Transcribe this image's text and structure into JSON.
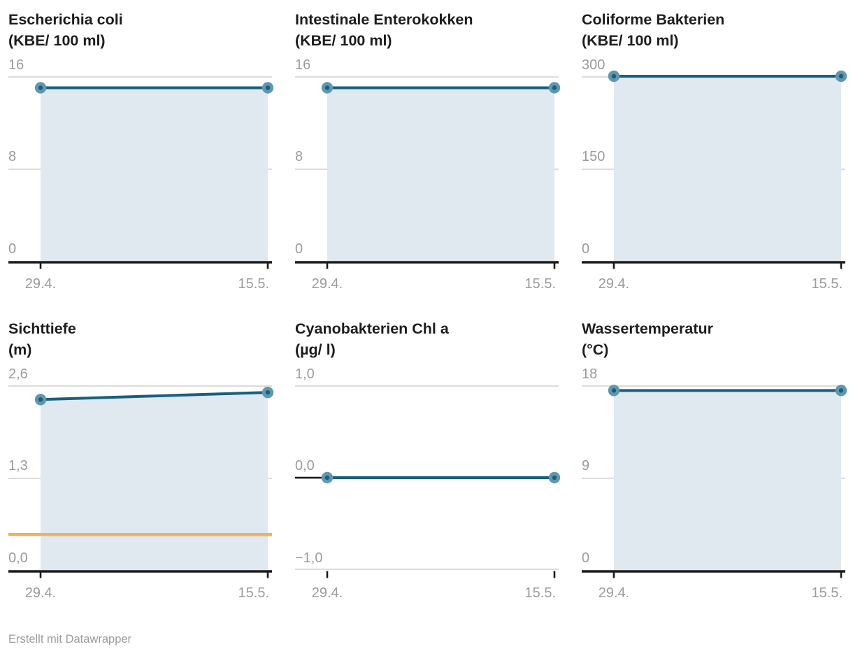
{
  "style": {
    "line_color": "#17607e",
    "dot_color": "#6097ae",
    "dot_core_color": "#17607e",
    "area_color": "#e0e8f0",
    "grid_color": "#dcdcdc",
    "axis_color": "#1a1a1a",
    "label_color": "#9b9b9b",
    "title_color": "#1d1d1d",
    "threshold_color": "#f0b05c"
  },
  "chart_data": [
    {
      "type": "area",
      "title": "Escherichia coli",
      "unit": "(KBE/ 100 ml)",
      "categories": [
        "29.4.",
        "15.5."
      ],
      "values": [
        15,
        15
      ],
      "ylim": [
        0,
        16
      ],
      "y_tick_values": [
        16,
        8,
        0
      ],
      "y_tick_labels": [
        "16",
        "8",
        "0"
      ],
      "baseline": "black",
      "zero_line": false,
      "threshold": null
    },
    {
      "type": "area",
      "title": "Intestinale Enterokokken",
      "unit": "(KBE/ 100 ml)",
      "categories": [
        "29.4.",
        "15.5."
      ],
      "values": [
        15,
        15
      ],
      "ylim": [
        0,
        16
      ],
      "y_tick_values": [
        16,
        8,
        0
      ],
      "y_tick_labels": [
        "16",
        "8",
        "0"
      ],
      "baseline": "black",
      "zero_line": false,
      "threshold": null
    },
    {
      "type": "area",
      "title": "Coliforme Bakterien",
      "unit": "(KBE/ 100 ml)",
      "categories": [
        "29.4.",
        "15.5."
      ],
      "values": [
        300,
        300
      ],
      "ylim": [
        0,
        300
      ],
      "y_tick_values": [
        300,
        150,
        0
      ],
      "y_tick_labels": [
        "300",
        "150",
        "0"
      ],
      "baseline": "black",
      "zero_line": false,
      "threshold": null
    },
    {
      "type": "area",
      "title": "Sichttiefe",
      "unit": "(m)",
      "categories": [
        "29.4.",
        "15.5."
      ],
      "values": [
        2.4,
        2.5
      ],
      "ylim": [
        0,
        2.6
      ],
      "y_tick_values": [
        2.6,
        1.3,
        0
      ],
      "y_tick_labels": [
        "2,6",
        "1,3",
        "0,0"
      ],
      "baseline": "black",
      "zero_line": false,
      "threshold": 0.5
    },
    {
      "type": "area",
      "title": "Cyanobakterien Chl a",
      "unit": "(µg/ l)",
      "categories": [
        "29.4.",
        "15.5."
      ],
      "values": [
        0,
        0
      ],
      "ylim": [
        -1,
        1
      ],
      "y_tick_values": [
        1,
        0,
        -1
      ],
      "y_tick_labels": [
        "1,0",
        "0,0",
        "−1,0"
      ],
      "baseline": "gray",
      "zero_line": true,
      "threshold": null
    },
    {
      "type": "area",
      "title": "Wassertemperatur",
      "unit": "(°C)",
      "categories": [
        "29.4.",
        "15.5."
      ],
      "values": [
        17.5,
        17.5
      ],
      "ylim": [
        0,
        18
      ],
      "y_tick_values": [
        18,
        9,
        0
      ],
      "y_tick_labels": [
        "18",
        "9",
        "0"
      ],
      "baseline": "black",
      "zero_line": false,
      "threshold": null
    }
  ],
  "footer": {
    "credit": "Erstellt mit Datawrapper"
  }
}
